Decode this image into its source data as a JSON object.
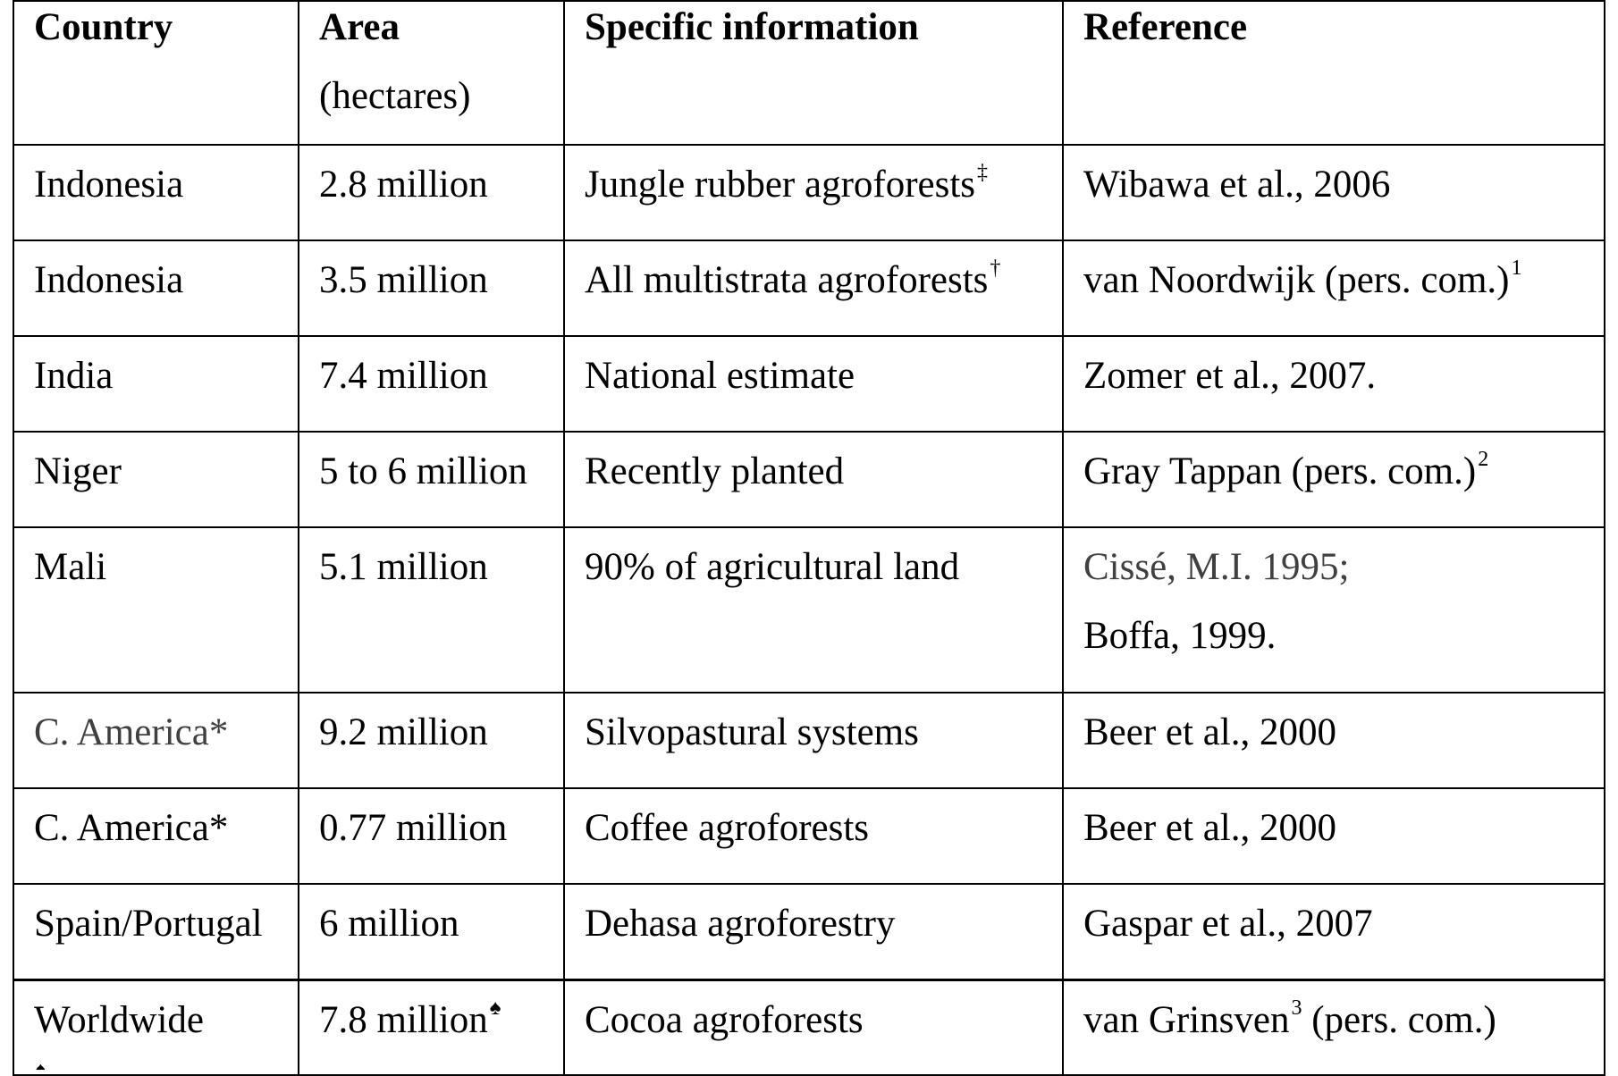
{
  "table": {
    "headers": [
      {
        "lines": [
          "Country"
        ],
        "bold": [
          true
        ]
      },
      {
        "lines": [
          "Area",
          "(hectares)"
        ],
        "bold": [
          true,
          false
        ]
      },
      {
        "lines": [
          "Specific information"
        ],
        "bold": [
          true
        ]
      },
      {
        "lines": [
          "Reference"
        ],
        "bold": [
          true
        ]
      }
    ],
    "rows": [
      {
        "country": "Indonesia",
        "area": "2.8 million",
        "area_mark": "",
        "info": "Jungle rubber agroforests",
        "info_mark": "‡",
        "reference_lines": [
          "Wibawa et al., 2006"
        ],
        "reference_mark": ""
      },
      {
        "country": "Indonesia",
        "area": "3.5 million",
        "area_mark": "",
        "info": "All multistrata agroforests",
        "info_mark": "†",
        "reference_lines": [
          "van Noordwijk (pers. com.)"
        ],
        "reference_mark": "1"
      },
      {
        "country": "India",
        "area": "7.4 million",
        "area_mark": "",
        "info": "National estimate",
        "info_mark": "",
        "reference_lines": [
          "Zomer et al., 2007."
        ],
        "reference_mark": ""
      },
      {
        "country": "Niger",
        "area": "5 to 6 million",
        "area_mark": "",
        "info": "Recently planted",
        "info_mark": "",
        "reference_lines": [
          "Gray Tappan (pers. com.)"
        ],
        "reference_mark": "2"
      },
      {
        "country": "Mali",
        "area": "5.1 million",
        "area_mark": "",
        "info": "90% of agricultural land",
        "info_mark": "",
        "reference_lines": [
          "Cissé, M.I. 1995;",
          "Boffa, 1999."
        ],
        "reference_mark": ""
      },
      {
        "country": "C. America*",
        "area": "9.2 million",
        "area_mark": "",
        "info": "Silvopastural systems",
        "info_mark": "",
        "reference_lines": [
          "Beer et al., 2000"
        ],
        "reference_mark": ""
      },
      {
        "country": "C. America*",
        "area": "0.77 million",
        "area_mark": "",
        "info": "Coffee agroforests",
        "info_mark": "",
        "reference_lines": [
          "Beer et al., 2000"
        ],
        "reference_mark": ""
      },
      {
        "country": "Spain/Portugal",
        "area": "6 million",
        "area_mark": "",
        "info": "Dehasa agroforestry",
        "info_mark": "",
        "reference_lines": [
          "Gaspar et al., 2007"
        ],
        "reference_mark": ""
      },
      {
        "country": "Worldwide",
        "area": "7.8 million",
        "area_mark": "♠",
        "info": "Cocoa agroforests",
        "info_mark": "",
        "reference_lines": [
          "van Grinsven",
          " (pers. com.)"
        ],
        "reference_mark": "3"
      }
    ]
  },
  "colors": {
    "text": "#000000",
    "muted_text": "#404040",
    "border": "#000000",
    "background": "#ffffff"
  },
  "footnote_stub": "♠"
}
